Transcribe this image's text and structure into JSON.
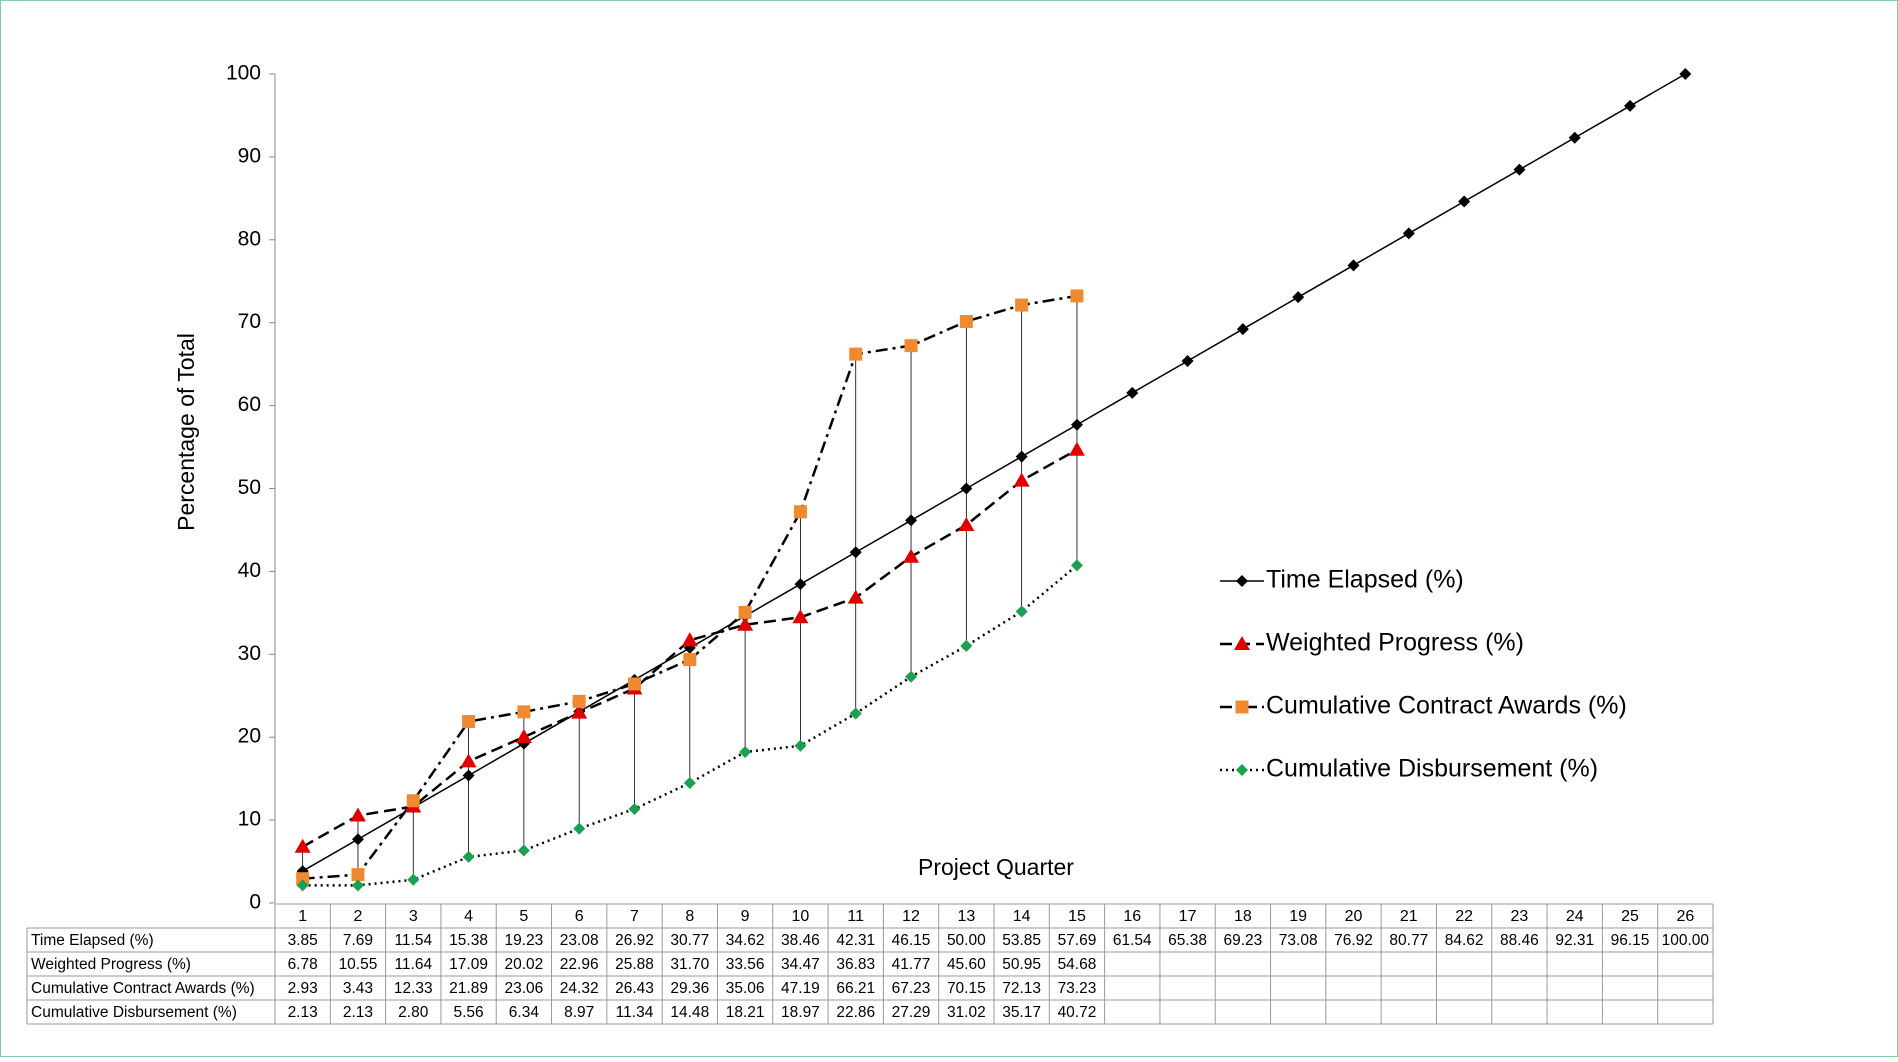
{
  "chart_data": {
    "type": "line",
    "x_label": "Project Quarter",
    "y_label": "Percentage of Total",
    "categories": [
      1,
      2,
      3,
      4,
      5,
      6,
      7,
      8,
      9,
      10,
      11,
      12,
      13,
      14,
      15,
      16,
      17,
      18,
      19,
      20,
      21,
      22,
      23,
      24,
      25,
      26
    ],
    "ylim": [
      0,
      100
    ],
    "yticks": [
      0,
      10,
      20,
      30,
      40,
      50,
      60,
      70,
      80,
      90,
      100
    ],
    "legend": "right",
    "high_low_lines": true,
    "series": [
      {
        "name": "Time Elapsed (%)",
        "color": "#000000",
        "marker": "diamond",
        "dash": "solid",
        "values": [
          3.85,
          7.69,
          11.54,
          15.38,
          19.23,
          23.08,
          26.92,
          30.77,
          34.62,
          38.46,
          42.31,
          46.15,
          50.0,
          53.85,
          57.69,
          61.54,
          65.38,
          69.23,
          73.08,
          76.92,
          80.77,
          84.62,
          88.46,
          92.31,
          96.15,
          100.0
        ],
        "value_labels": [
          "3.85",
          "7.69",
          "11.54",
          "15.38",
          "19.23",
          "23.08",
          "26.92",
          "30.77",
          "34.62",
          "38.46",
          "42.31",
          "46.15",
          "50.00",
          "53.85",
          "57.69",
          "61.54",
          "65.38",
          "69.23",
          "73.08",
          "76.92",
          "80.77",
          "84.62",
          "88.46",
          "92.31",
          "96.15",
          "100.00"
        ]
      },
      {
        "name": "Weighted Progress (%)",
        "color": "#e00000",
        "marker": "triangle",
        "dash": "dash",
        "values": [
          6.78,
          10.55,
          11.64,
          17.09,
          20.02,
          22.96,
          25.88,
          31.7,
          33.56,
          34.47,
          36.83,
          41.77,
          45.6,
          50.95,
          54.68,
          null,
          null,
          null,
          null,
          null,
          null,
          null,
          null,
          null,
          null,
          null
        ],
        "value_labels": [
          "6.78",
          "10.55",
          "11.64",
          "17.09",
          "20.02",
          "22.96",
          "25.88",
          "31.70",
          "33.56",
          "34.47",
          "36.83",
          "41.77",
          "45.60",
          "50.95",
          "54.68",
          null,
          null,
          null,
          null,
          null,
          null,
          null,
          null,
          null,
          null,
          null
        ]
      },
      {
        "name": "Cumulative Contract Awards (%)",
        "color": "#f08a30",
        "marker": "square",
        "dash": "dashdot",
        "values": [
          2.93,
          3.43,
          12.33,
          21.89,
          23.06,
          24.32,
          26.43,
          29.36,
          35.06,
          47.19,
          66.21,
          67.23,
          70.15,
          72.13,
          73.23,
          null,
          null,
          null,
          null,
          null,
          null,
          null,
          null,
          null,
          null,
          null
        ],
        "value_labels": [
          "2.93",
          "3.43",
          "12.33",
          "21.89",
          "23.06",
          "24.32",
          "26.43",
          "29.36",
          "35.06",
          "47.19",
          "66.21",
          "67.23",
          "70.15",
          "72.13",
          "73.23",
          null,
          null,
          null,
          null,
          null,
          null,
          null,
          null,
          null,
          null,
          null
        ]
      },
      {
        "name": "Cumulative Disbursement (%)",
        "color": "#1aa050",
        "marker": "diamond",
        "dash": "dot",
        "values": [
          2.13,
          2.13,
          2.8,
          5.56,
          6.34,
          8.97,
          11.34,
          14.48,
          18.21,
          18.97,
          22.86,
          27.29,
          31.02,
          35.17,
          40.72,
          null,
          null,
          null,
          null,
          null,
          null,
          null,
          null,
          null,
          null,
          null
        ],
        "value_labels": [
          "2.13",
          "2.13",
          "2.80",
          "5.56",
          "6.34",
          "8.97",
          "11.34",
          "14.48",
          "18.21",
          "18.97",
          "22.86",
          "27.29",
          "31.02",
          "35.17",
          "40.72",
          null,
          null,
          null,
          null,
          null,
          null,
          null,
          null,
          null,
          null,
          null
        ]
      }
    ]
  }
}
